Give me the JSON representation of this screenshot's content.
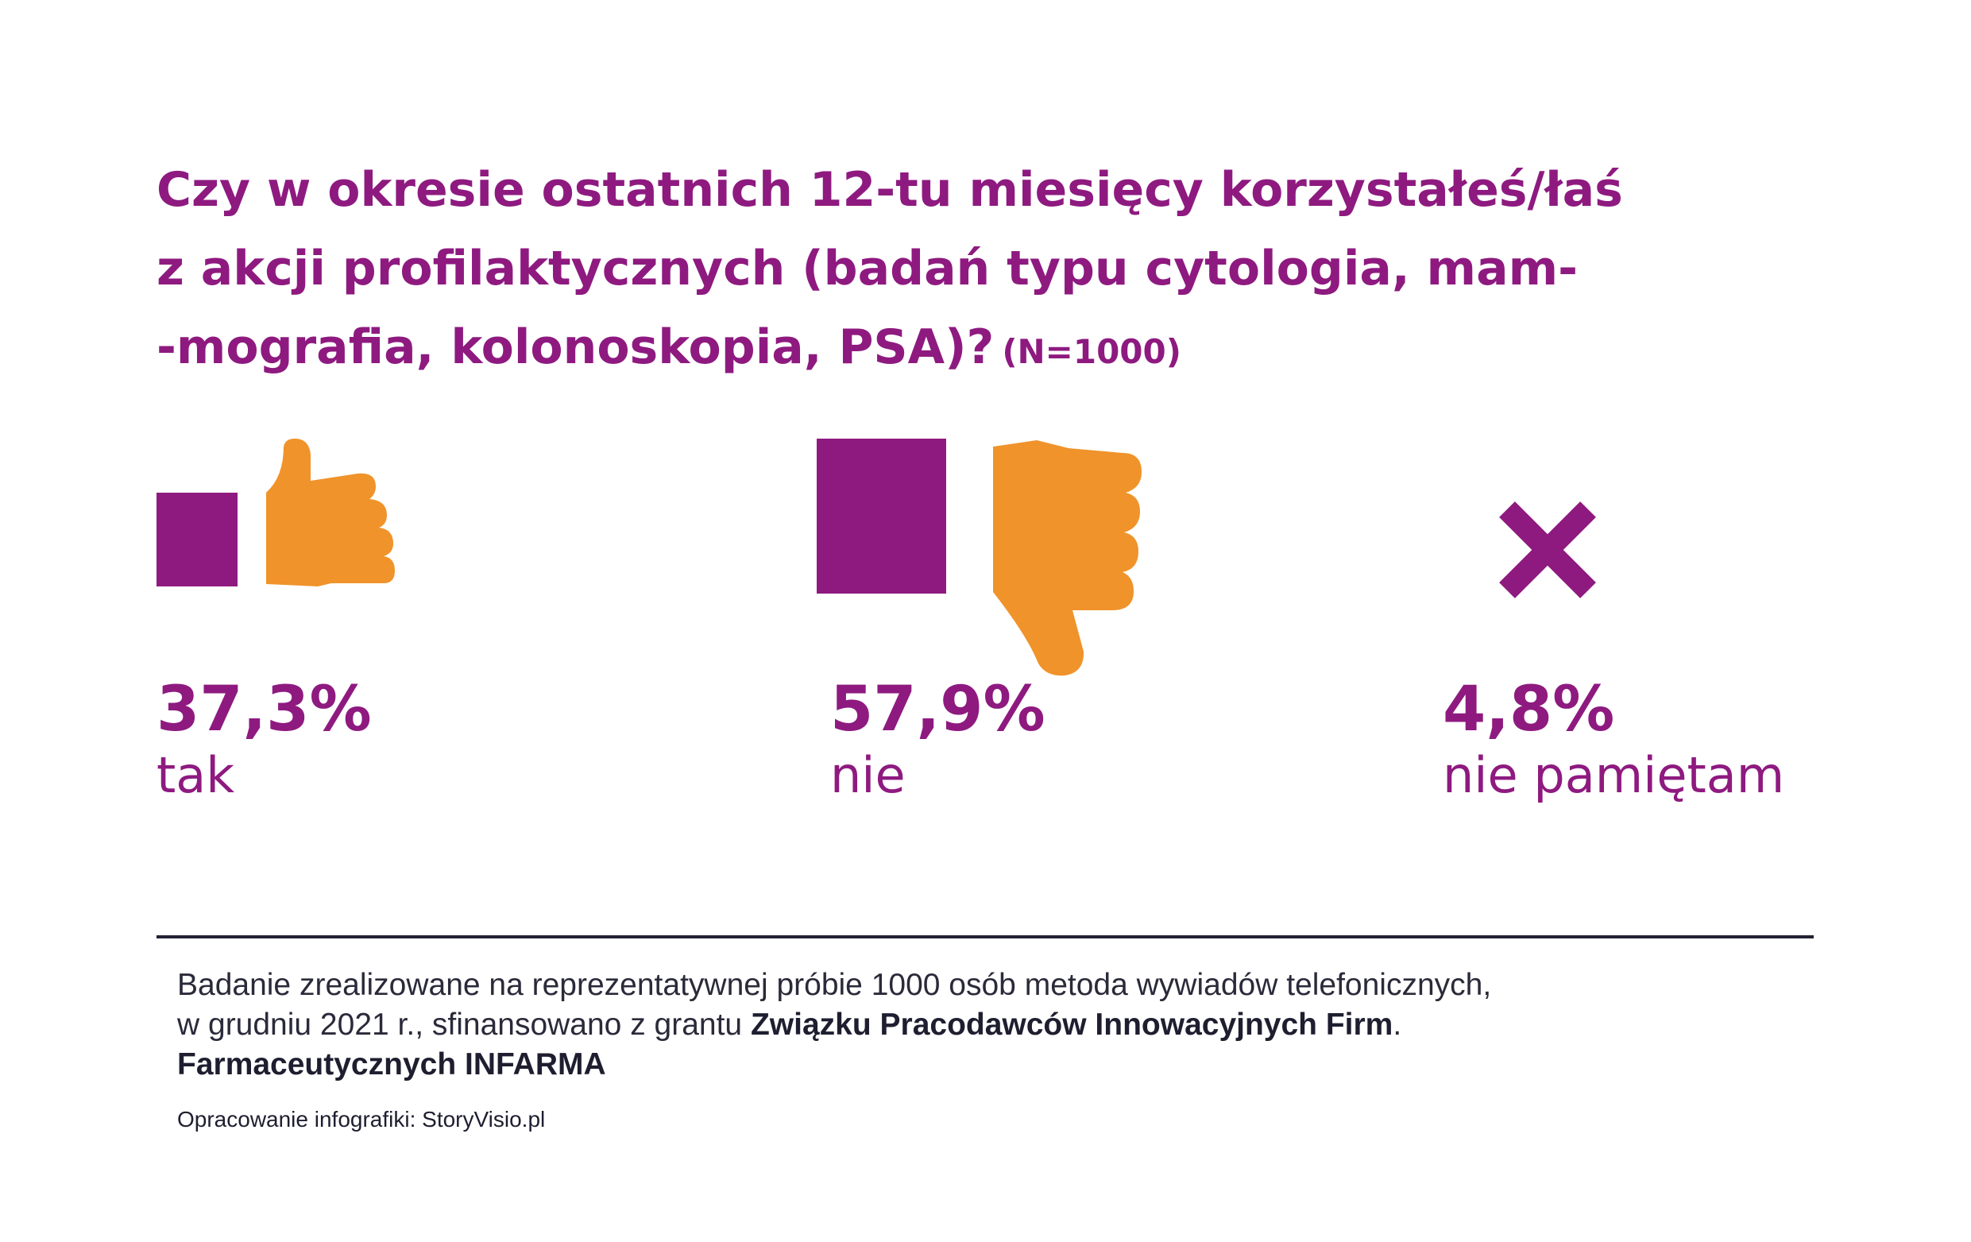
{
  "title": {
    "line1": "Czy w okresie ostatnich 12-tu miesięcy korzystałeś/łaś",
    "line2": "z akcji profilaktycznych (badań typu cytologia, mam-",
    "line3": "-mografia, kolonoskopia, PSA)?",
    "sample_size": "(N=1000)"
  },
  "colors": {
    "purple": "#8e1a80",
    "orange": "#f0932a",
    "dark": "#222233"
  },
  "chart_data": {
    "type": "pictograph",
    "title": "Czy w okresie ostatnich 12-tu miesięcy korzystałeś/łaś z akcji profilaktycznych (badań typu cytologia, mam-mografia, kolonoskopia, PSA)? (N=1000)",
    "unit": "%",
    "categories": [
      "tak",
      "nie",
      "nie pamiętam"
    ],
    "values": [
      37.3,
      57.9,
      4.8
    ],
    "value_labels": [
      "37,3%",
      "57,9%",
      "4,8%"
    ],
    "icons": [
      "thumbs-up-icon",
      "thumbs-down-icon",
      "cross-icon"
    ]
  },
  "footnote": {
    "line1": "Badanie zrealizowane na reprezentatywnej próbie 1000 osób metoda wywiadów telefonicznych,",
    "line2_start": "w grudniu 2021 r., sfinansowano z grantu",
    "line2_bold": "Związku Pracodawców Innowacyjnych Firm",
    "line2_end": ".",
    "line3_bold": "Farmaceutycznych INFARMA"
  },
  "credit": "Opracowanie infografiki: StoryVisio.pl"
}
